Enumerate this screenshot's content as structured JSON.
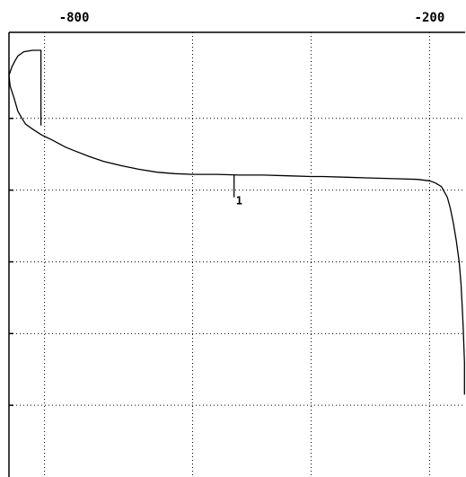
{
  "chart_data": {
    "type": "line",
    "title": "",
    "xlabel": "",
    "ylabel": "",
    "xlim": [
      -910,
      -140
    ],
    "ylim": [
      0,
      6.2
    ],
    "grid": true,
    "x_tick_labels": [
      {
        "x": -800,
        "label": "-800"
      },
      {
        "x": -200,
        "label": "-200"
      }
    ],
    "x_gridlines": [
      -850,
      -600,
      -400,
      -200
    ],
    "y_gridlines": [
      5,
      4,
      3,
      2,
      1
    ],
    "series": [
      {
        "name": "",
        "x": [
          -910,
          -908,
          -902,
          -895,
          -888,
          -882,
          -870,
          -855,
          -835,
          -815,
          -800,
          -775,
          -750,
          -720,
          -690,
          -660,
          -630,
          -600,
          -560,
          -520,
          -480,
          -440,
          -400,
          -380,
          -340,
          -300,
          -260,
          -220,
          -200,
          -190,
          -180,
          -170,
          -165,
          -160,
          -155,
          -150,
          -147,
          -145,
          -143,
          -142,
          -141,
          -141,
          -141
        ],
        "y": [
          5.6,
          5.45,
          5.3,
          5.1,
          5.0,
          4.92,
          4.85,
          4.77,
          4.69,
          4.6,
          4.55,
          4.47,
          4.4,
          4.34,
          4.29,
          4.25,
          4.23,
          4.22,
          4.22,
          4.21,
          4.21,
          4.2,
          4.19,
          4.19,
          4.18,
          4.17,
          4.16,
          4.15,
          4.13,
          4.1,
          4.05,
          3.9,
          3.75,
          3.55,
          3.3,
          3.0,
          2.7,
          2.4,
          2.05,
          1.8,
          1.6,
          1.35,
          1.15
        ]
      },
      {
        "name": "",
        "x": [
          -910,
          -905,
          -900,
          -895,
          -885,
          -870,
          -860,
          -856,
          -856
        ],
        "y": [
          5.6,
          5.72,
          5.8,
          5.87,
          5.93,
          5.95,
          5.95,
          5.95,
          4.9
        ]
      }
    ],
    "annotations": [
      {
        "x": -530,
        "y": 4.21,
        "y_end": 3.9,
        "label": "1"
      }
    ]
  }
}
